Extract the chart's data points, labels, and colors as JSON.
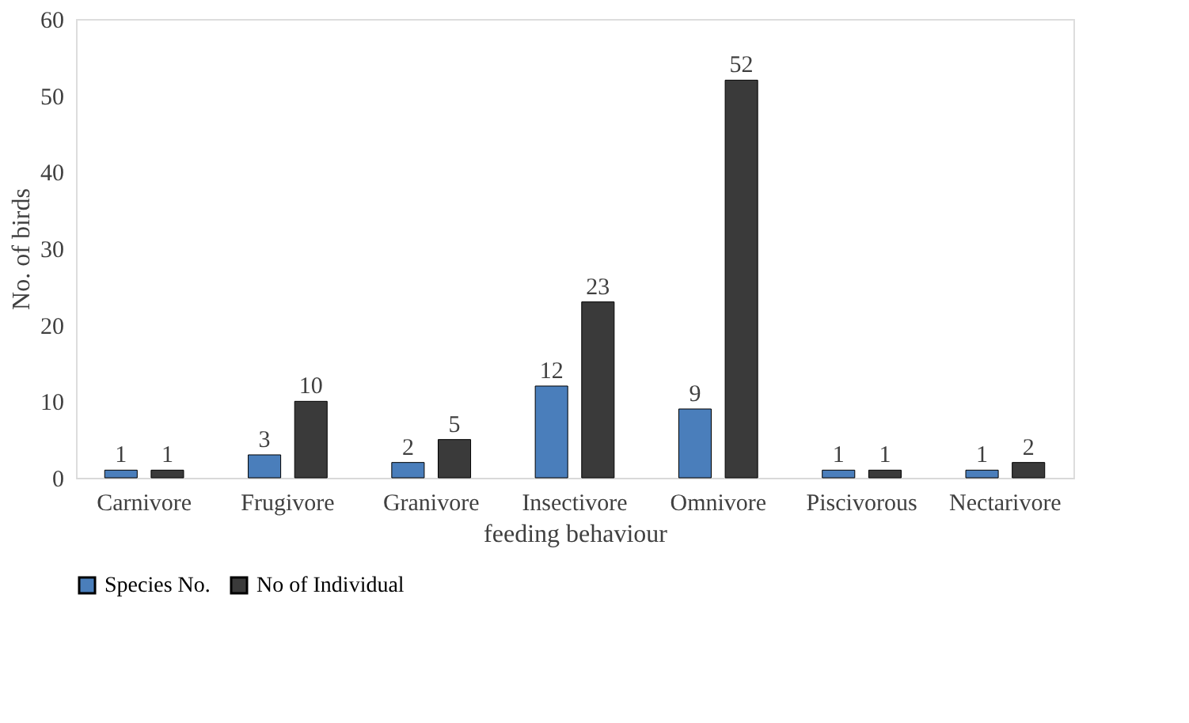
{
  "chart_data": {
    "type": "bar",
    "xlabel": "feeding behaviour",
    "ylabel": "No. of birds",
    "categories": [
      "Carnivore",
      "Frugivore",
      "Granivore",
      "Insectivore",
      "Omnivore",
      "Piscivorous",
      "Nectarivore"
    ],
    "series": [
      {
        "name": "Species No.",
        "color": "#4a7ebb",
        "values": [
          1,
          3,
          2,
          12,
          9,
          1,
          1
        ]
      },
      {
        "name": "No of Individual",
        "color": "#3a3a3a",
        "values": [
          1,
          10,
          5,
          23,
          52,
          1,
          2
        ]
      }
    ],
    "ylim": [
      0,
      60
    ],
    "yticks": [
      0,
      10,
      20,
      30,
      40,
      50,
      60
    ],
    "grid": false,
    "legend": "bottom",
    "data_labels": true
  }
}
